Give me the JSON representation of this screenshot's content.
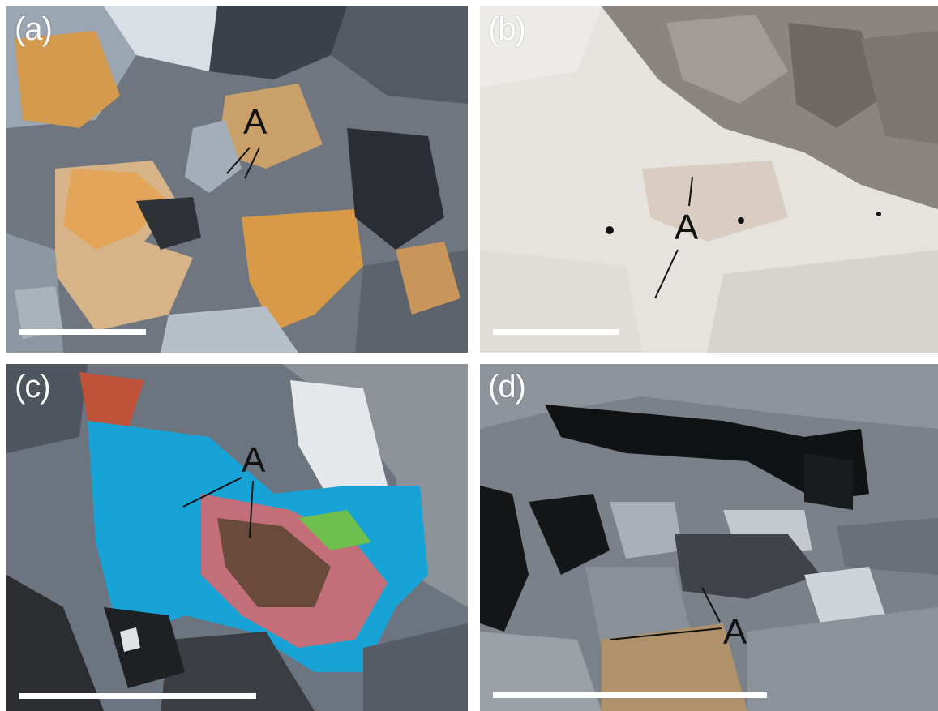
{
  "figure": {
    "panels": [
      {
        "label": "(a)",
        "annotation": "A"
      },
      {
        "label": "(b)",
        "annotation": "A"
      },
      {
        "label": "(c)",
        "annotation": "A"
      },
      {
        "label": "(d)",
        "annotation": "A"
      }
    ]
  },
  "colors": {
    "scalebar": "#ffffff",
    "label": "#ffffff",
    "annotation": "#111111"
  }
}
